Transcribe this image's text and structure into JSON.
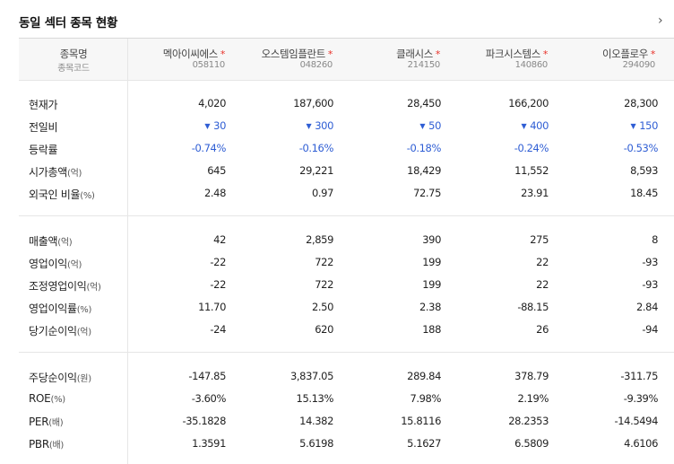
{
  "title": "동일 섹터 종목 현황",
  "header": {
    "first_name": "종목명",
    "first_code": "종목코드",
    "companies": [
      {
        "name": "멕아이씨에스",
        "code": "058110"
      },
      {
        "name": "오스템임플란트",
        "code": "048260"
      },
      {
        "name": "클래시스",
        "code": "214150"
      },
      {
        "name": "파크시스템스",
        "code": "140860"
      },
      {
        "name": "이오플로우",
        "code": "294090"
      }
    ],
    "star": "*"
  },
  "colors": {
    "blue": "#2f5ed4",
    "star": "#e8322a"
  },
  "groups": [
    {
      "rows": [
        {
          "label": "현재가",
          "unit": "",
          "type": "plain",
          "values": [
            "4,020",
            "187,600",
            "28,450",
            "166,200",
            "28,300"
          ]
        },
        {
          "label": "전일비",
          "unit": "",
          "type": "down",
          "values": [
            "30",
            "300",
            "50",
            "400",
            "150"
          ]
        },
        {
          "label": "등락률",
          "unit": "",
          "type": "blue",
          "values": [
            "-0.74%",
            "-0.16%",
            "-0.18%",
            "-0.24%",
            "-0.53%"
          ]
        },
        {
          "label": "시가총액",
          "unit": "(억)",
          "type": "plain",
          "values": [
            "645",
            "29,221",
            "18,429",
            "11,552",
            "8,593"
          ]
        },
        {
          "label": "외국인 비율",
          "unit": "(%)",
          "type": "plain",
          "values": [
            "2.48",
            "0.97",
            "72.75",
            "23.91",
            "18.45"
          ]
        }
      ]
    },
    {
      "rows": [
        {
          "label": "매출액",
          "unit": "(억)",
          "type": "plain",
          "values": [
            "42",
            "2,859",
            "390",
            "275",
            "8"
          ]
        },
        {
          "label": "영업이익",
          "unit": "(억)",
          "type": "plain",
          "values": [
            "-22",
            "722",
            "199",
            "22",
            "-93"
          ]
        },
        {
          "label": "조정영업이익",
          "unit": "(억)",
          "type": "plain",
          "values": [
            "-22",
            "722",
            "199",
            "22",
            "-93"
          ]
        },
        {
          "label": "영업이익률",
          "unit": "(%)",
          "type": "plain",
          "values": [
            "11.70",
            "2.50",
            "2.38",
            "-88.15",
            "2.84"
          ]
        },
        {
          "label": "당기순이익",
          "unit": "(억)",
          "type": "plain",
          "values": [
            "-24",
            "620",
            "188",
            "26",
            "-94"
          ]
        }
      ]
    },
    {
      "rows": [
        {
          "label": "주당순이익",
          "unit": "(원)",
          "type": "plain",
          "values": [
            "-147.85",
            "3,837.05",
            "289.84",
            "378.79",
            "-311.75"
          ]
        },
        {
          "label": "ROE",
          "unit": "(%)",
          "type": "plain",
          "values": [
            "-3.60%",
            "15.13%",
            "7.98%",
            "2.19%",
            "-9.39%"
          ]
        },
        {
          "label": "PER",
          "unit": "(배)",
          "type": "plain",
          "values": [
            "-35.1828",
            "14.382",
            "15.8116",
            "28.2353",
            "-14.5494"
          ]
        },
        {
          "label": "PBR",
          "unit": "(배)",
          "type": "plain",
          "values": [
            "1.3591",
            "5.6198",
            "5.1627",
            "6.5809",
            "4.6106"
          ]
        }
      ]
    }
  ]
}
